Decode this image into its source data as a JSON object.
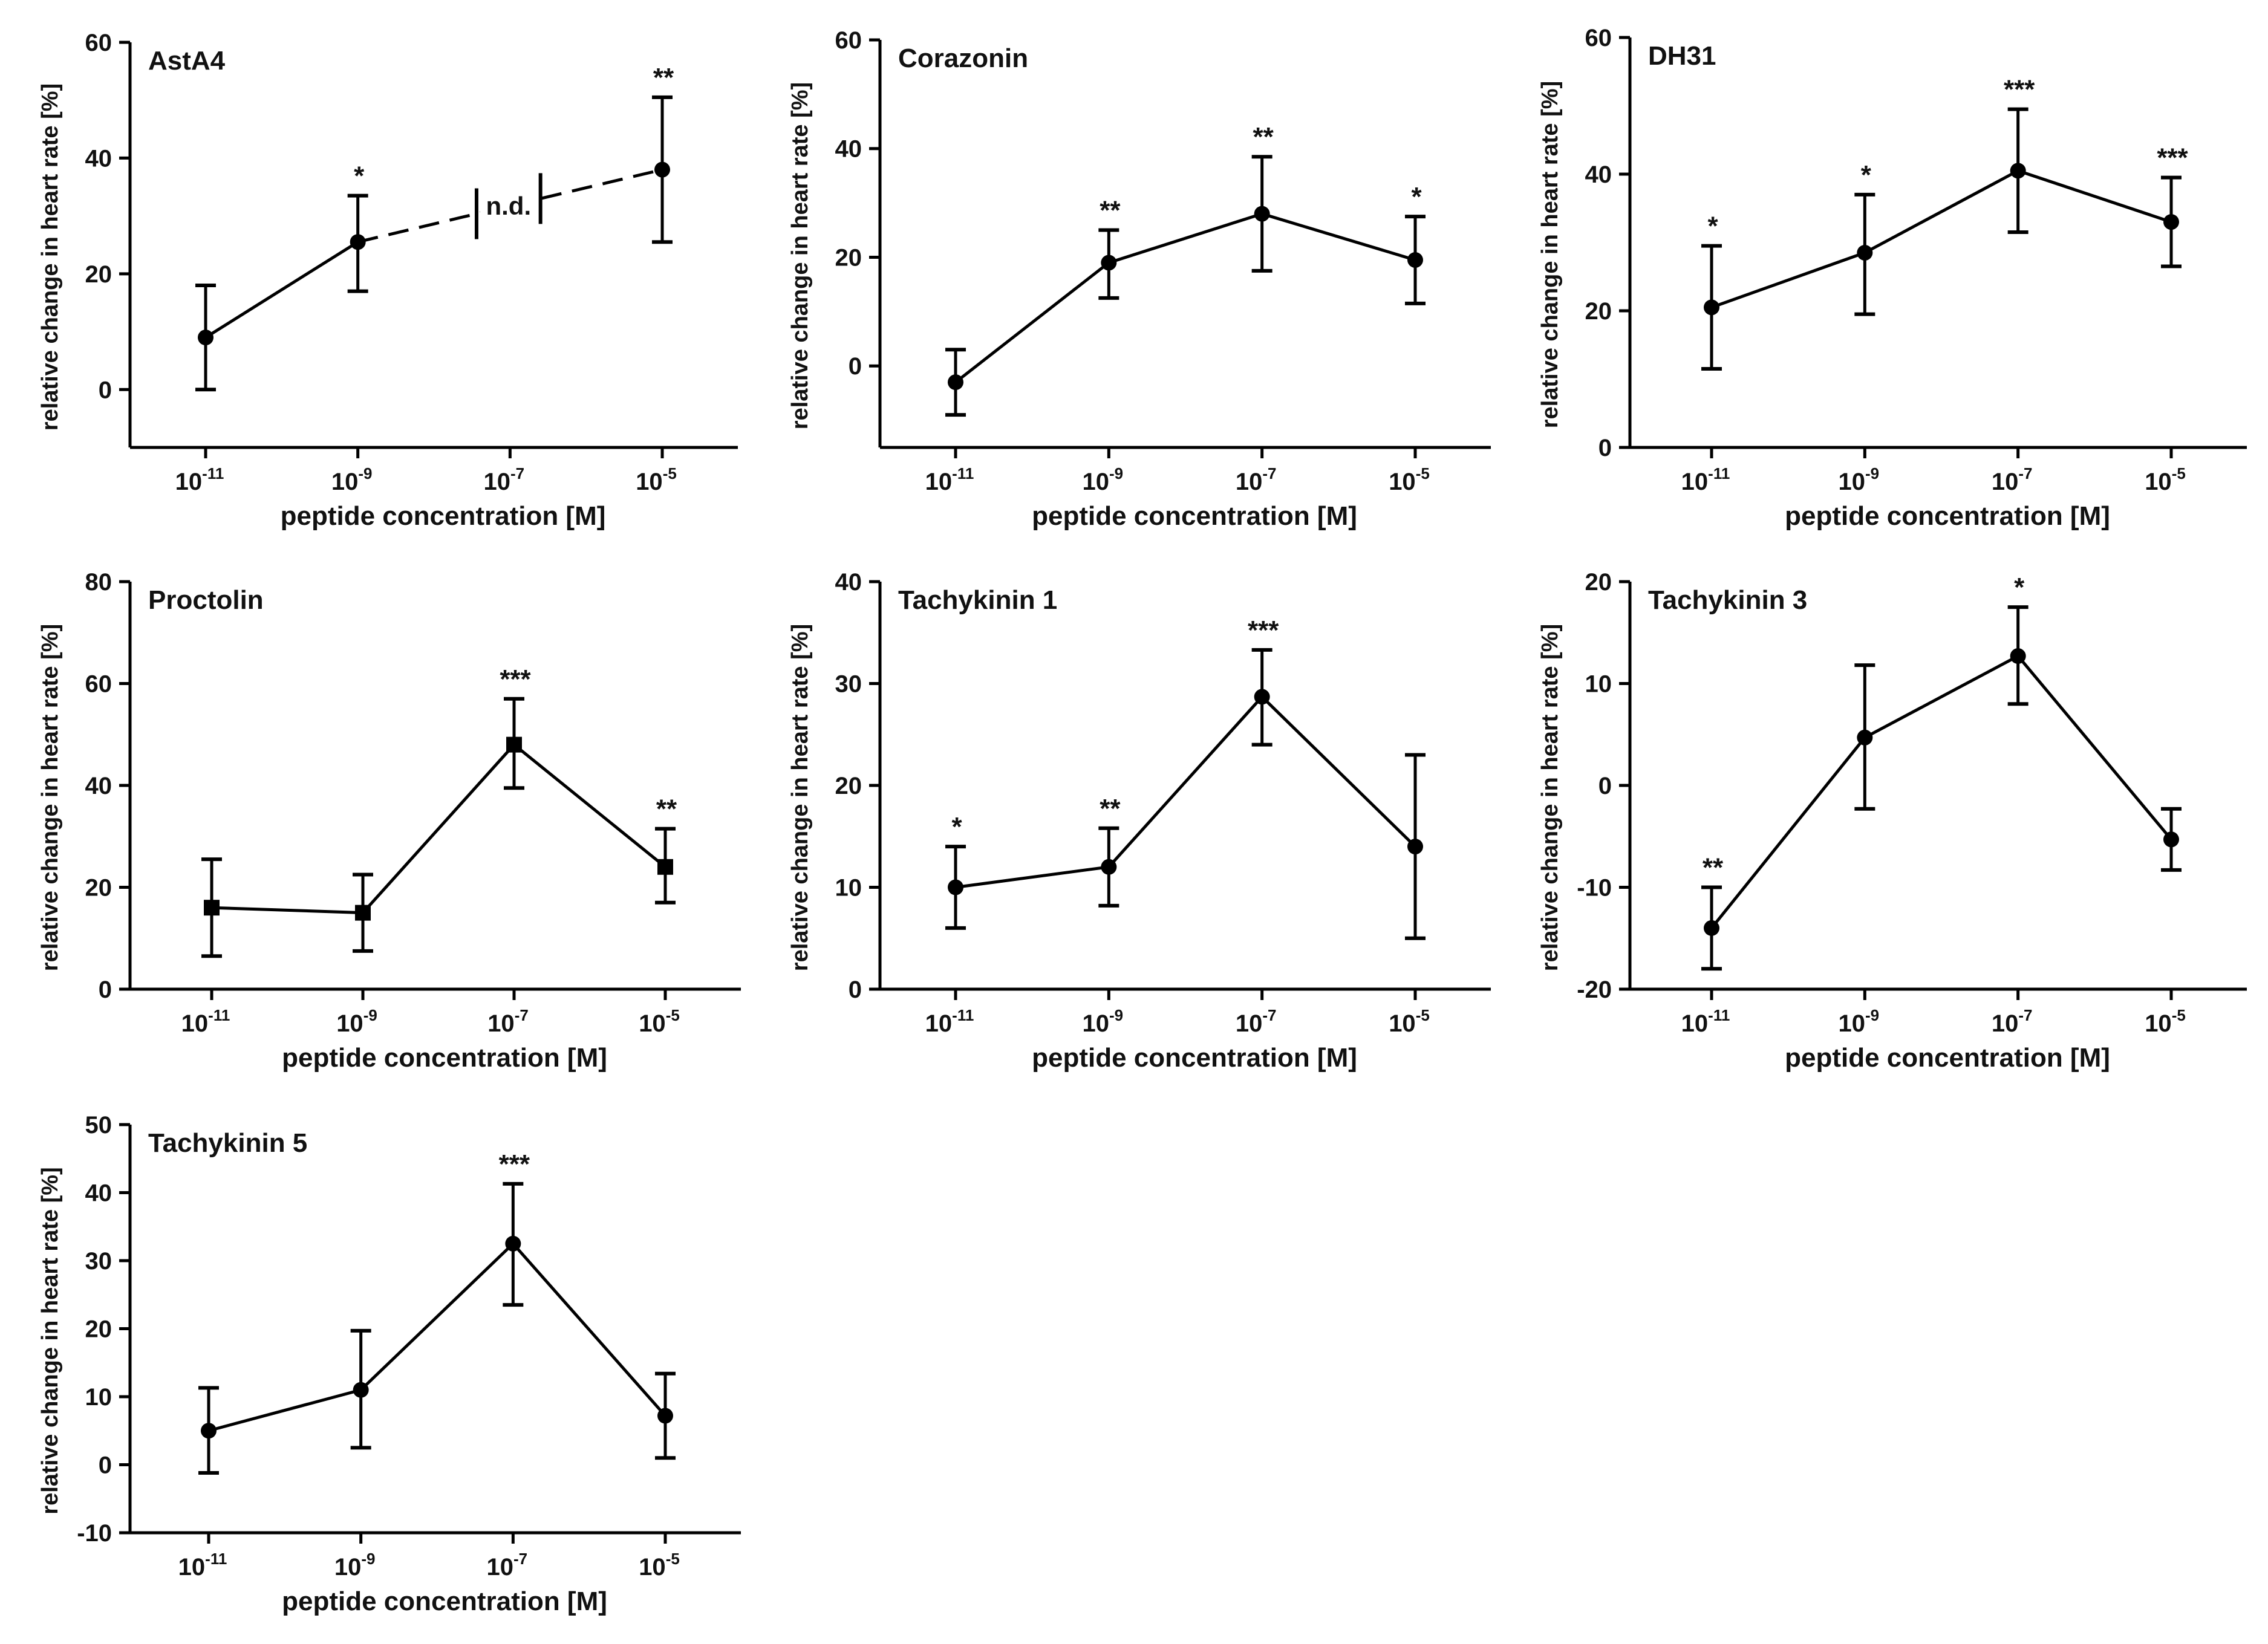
{
  "chart_data": [
    {
      "type": "line",
      "title": "AstA4",
      "xlabel": "peptide concentration [M]",
      "ylabel": "relative change in heart rate [%]",
      "x_categories": [
        {
          "base": "10",
          "exp": "-11"
        },
        {
          "base": "10",
          "exp": "-9"
        },
        {
          "base": "10",
          "exp": "-7"
        },
        {
          "base": "10",
          "exp": "-5"
        }
      ],
      "ylim": [
        -10,
        60
      ],
      "yticks": [
        0,
        20,
        40,
        60
      ],
      "marker": "circle",
      "points": [
        {
          "x": 0,
          "y": 9,
          "low": 0,
          "high": 18,
          "sig": ""
        },
        {
          "x": 1,
          "y": 25.5,
          "low": 17,
          "high": 33.5,
          "sig": "*"
        },
        {
          "x": 3,
          "y": 38,
          "low": 25.5,
          "high": 50.5,
          "sig": "**"
        }
      ],
      "gap": {
        "from": 1,
        "to": 3,
        "label": "n.d."
      }
    },
    {
      "type": "line",
      "title": "Corazonin",
      "xlabel": "peptide concentration [M]",
      "ylabel": "relative change in heart rate [%]",
      "x_categories": [
        {
          "base": "10",
          "exp": "-11"
        },
        {
          "base": "10",
          "exp": "-9"
        },
        {
          "base": "10",
          "exp": "-7"
        },
        {
          "base": "10",
          "exp": "-5"
        }
      ],
      "ylim": [
        -15,
        60
      ],
      "yticks": [
        0,
        20,
        40,
        60
      ],
      "marker": "circle",
      "points": [
        {
          "x": 0,
          "y": -3,
          "low": -9,
          "high": 3,
          "sig": ""
        },
        {
          "x": 1,
          "y": 19,
          "low": 12.5,
          "high": 25,
          "sig": "**"
        },
        {
          "x": 2,
          "y": 28,
          "low": 17.5,
          "high": 38.5,
          "sig": "**"
        },
        {
          "x": 3,
          "y": 19.5,
          "low": 11.5,
          "high": 27.5,
          "sig": "*"
        }
      ]
    },
    {
      "type": "line",
      "title": "DH31",
      "xlabel": "peptide concentration [M]",
      "ylabel": "relative change in heart rate [%]",
      "x_categories": [
        {
          "base": "10",
          "exp": "-11"
        },
        {
          "base": "10",
          "exp": "-9"
        },
        {
          "base": "10",
          "exp": "-7"
        },
        {
          "base": "10",
          "exp": "-5"
        }
      ],
      "ylim": [
        0,
        60
      ],
      "yticks": [
        0,
        20,
        40,
        60
      ],
      "marker": "circle",
      "points": [
        {
          "x": 0,
          "y": 20.5,
          "low": 11.5,
          "high": 29.5,
          "sig": "*"
        },
        {
          "x": 1,
          "y": 28.5,
          "low": 19.5,
          "high": 37,
          "sig": "*"
        },
        {
          "x": 2,
          "y": 40.5,
          "low": 31.5,
          "high": 49.5,
          "sig": "***"
        },
        {
          "x": 3,
          "y": 33,
          "low": 26.5,
          "high": 39.5,
          "sig": "***"
        }
      ]
    },
    {
      "type": "line",
      "title": "Proctolin",
      "xlabel": "peptide concentration [M]",
      "ylabel": "relative change in heart rate [%]",
      "x_categories": [
        {
          "base": "10",
          "exp": "-11"
        },
        {
          "base": "10",
          "exp": "-9"
        },
        {
          "base": "10",
          "exp": "-7"
        },
        {
          "base": "10",
          "exp": "-5"
        }
      ],
      "ylim": [
        0,
        80
      ],
      "yticks": [
        0,
        20,
        40,
        60,
        80
      ],
      "marker": "square",
      "points": [
        {
          "x": 0,
          "y": 16,
          "low": 6.5,
          "high": 25.5,
          "sig": ""
        },
        {
          "x": 1,
          "y": 15,
          "low": 7.5,
          "high": 22.5,
          "sig": ""
        },
        {
          "x": 2,
          "y": 48,
          "low": 39.5,
          "high": 57,
          "sig": "***"
        },
        {
          "x": 3,
          "y": 24,
          "low": 17,
          "high": 31.5,
          "sig": "**"
        }
      ]
    },
    {
      "type": "line",
      "title": "Tachykinin 1",
      "xlabel": "peptide concentration [M]",
      "ylabel": "relative change in heart rate [%]",
      "x_categories": [
        {
          "base": "10",
          "exp": "-11"
        },
        {
          "base": "10",
          "exp": "-9"
        },
        {
          "base": "10",
          "exp": "-7"
        },
        {
          "base": "10",
          "exp": "-5"
        }
      ],
      "ylim": [
        0,
        40
      ],
      "yticks": [
        0,
        10,
        20,
        30,
        40
      ],
      "marker": "circle",
      "points": [
        {
          "x": 0,
          "y": 10,
          "low": 6,
          "high": 14,
          "sig": "*"
        },
        {
          "x": 1,
          "y": 12,
          "low": 8.2,
          "high": 15.8,
          "sig": "**"
        },
        {
          "x": 2,
          "y": 28.7,
          "low": 24,
          "high": 33.3,
          "sig": "***"
        },
        {
          "x": 3,
          "y": 14,
          "low": 5,
          "high": 23,
          "sig": ""
        }
      ]
    },
    {
      "type": "line",
      "title": "Tachykinin 3",
      "xlabel": "peptide concentration [M]",
      "ylabel": "relative change in heart rate [%]",
      "x_categories": [
        {
          "base": "10",
          "exp": "-11"
        },
        {
          "base": "10",
          "exp": "-9"
        },
        {
          "base": "10",
          "exp": "-7"
        },
        {
          "base": "10",
          "exp": "-5"
        }
      ],
      "ylim": [
        -20,
        20
      ],
      "yticks": [
        -20,
        -10,
        0,
        10,
        20
      ],
      "marker": "circle",
      "points": [
        {
          "x": 0,
          "y": -14,
          "low": -18,
          "high": -10,
          "sig": "**"
        },
        {
          "x": 1,
          "y": 4.7,
          "low": -2.3,
          "high": 11.8,
          "sig": ""
        },
        {
          "x": 2,
          "y": 12.7,
          "low": 8,
          "high": 17.5,
          "sig": "*"
        },
        {
          "x": 3,
          "y": -5.3,
          "low": -8.3,
          "high": -2.3,
          "sig": ""
        }
      ]
    },
    {
      "type": "line",
      "title": "Tachykinin 5",
      "xlabel": "peptide concentration [M]",
      "ylabel": "relative change in heart rate [%]",
      "x_categories": [
        {
          "base": "10",
          "exp": "-11"
        },
        {
          "base": "10",
          "exp": "-9"
        },
        {
          "base": "10",
          "exp": "-7"
        },
        {
          "base": "10",
          "exp": "-5"
        }
      ],
      "ylim": [
        -10,
        50
      ],
      "yticks": [
        -10,
        0,
        10,
        20,
        30,
        40,
        50
      ],
      "marker": "circle",
      "points": [
        {
          "x": 0,
          "y": 5,
          "low": -1.2,
          "high": 11.3,
          "sig": ""
        },
        {
          "x": 1,
          "y": 11,
          "low": 2.5,
          "high": 19.7,
          "sig": ""
        },
        {
          "x": 2,
          "y": 32.5,
          "low": 23.5,
          "high": 41.3,
          "sig": "***"
        },
        {
          "x": 3,
          "y": 7.2,
          "low": 1,
          "high": 13.4,
          "sig": ""
        }
      ]
    }
  ]
}
